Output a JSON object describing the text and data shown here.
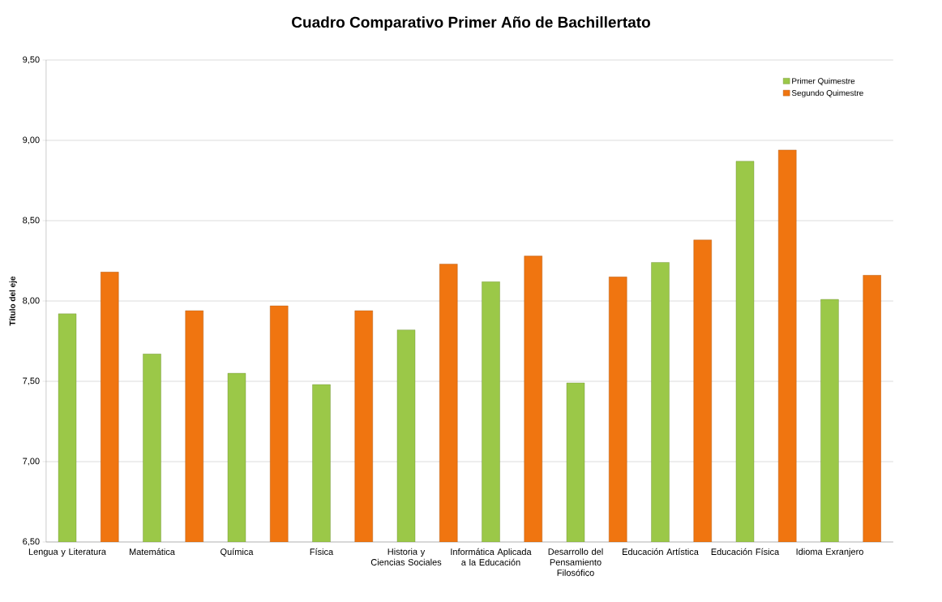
{
  "chart_data": {
    "type": "bar",
    "title": "Cuadro Comparativo  Primer Año de Bachillertato",
    "ylabel": "Título del eje",
    "categories": [
      "Lengua y Literatura",
      null,
      "Matemática",
      null,
      "Química",
      null,
      "Física",
      null,
      "Historia y Ciencias Sociales",
      null,
      "Informática Aplicada a la Educación",
      null,
      "Desarrollo del Pensamiento Filosófico",
      null,
      "Educación Artística",
      null,
      "Educación Física",
      null,
      "Idioma Exranjero",
      null
    ],
    "series": [
      {
        "name": "Primer Quimestre",
        "color": "#9bc848",
        "values": [
          7.92,
          null,
          7.67,
          null,
          7.55,
          null,
          7.48,
          null,
          7.82,
          null,
          8.12,
          null,
          7.49,
          null,
          8.24,
          null,
          8.87,
          null,
          8.01,
          null
        ]
      },
      {
        "name": "Segundo Quimestre",
        "color": "#f07510",
        "values": [
          null,
          8.18,
          null,
          7.94,
          null,
          7.97,
          null,
          7.94,
          null,
          8.23,
          null,
          8.28,
          null,
          8.15,
          null,
          8.38,
          null,
          8.94,
          null,
          8.16
        ]
      }
    ],
    "ylim": [
      6.5,
      9.5
    ],
    "yticks": [
      {
        "value": 6.5,
        "label": "6,50"
      },
      {
        "value": 7.0,
        "label": "7,00"
      },
      {
        "value": 7.5,
        "label": "7,50"
      },
      {
        "value": 8.0,
        "label": "8,00"
      },
      {
        "value": 8.5,
        "label": "8,50"
      },
      {
        "value": 9.0,
        "label": "9,00"
      },
      {
        "value": 9.5,
        "label": "9,50"
      }
    ],
    "grid": "y",
    "legend": "top right"
  }
}
